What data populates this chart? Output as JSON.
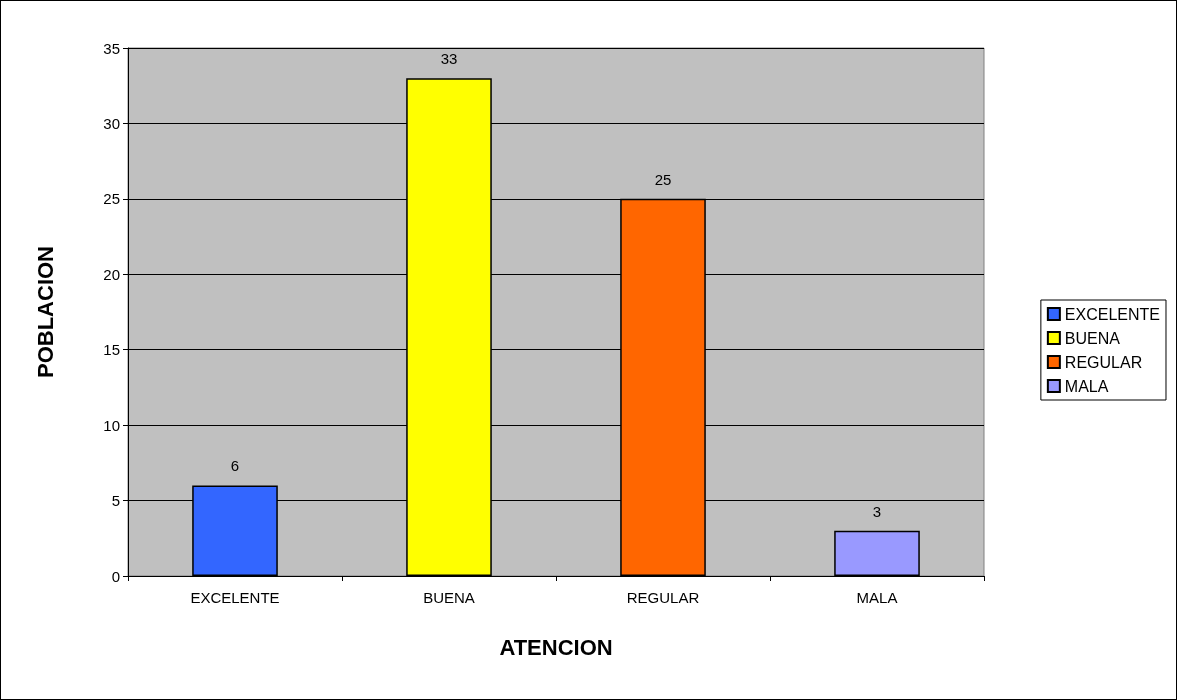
{
  "chart_data": {
    "type": "bar",
    "xlabel": "ATENCION",
    "ylabel": "POBLACION",
    "categories": [
      "EXCELENTE",
      "BUENA",
      "REGULAR",
      "MALA"
    ],
    "series": [
      {
        "name": "EXCELENTE",
        "color": "#3366ff",
        "values": [
          6,
          null,
          null,
          null
        ]
      },
      {
        "name": "BUENA",
        "color": "#ffff00",
        "values": [
          null,
          33,
          null,
          null
        ]
      },
      {
        "name": "REGULAR",
        "color": "#ff6600",
        "values": [
          null,
          null,
          25,
          null
        ]
      },
      {
        "name": "MALA",
        "color": "#9999ff",
        "values": [
          null,
          null,
          null,
          3
        ]
      }
    ],
    "ylim": [
      0,
      35
    ],
    "yticks": [
      0,
      5,
      10,
      15,
      20,
      25,
      30,
      35
    ],
    "grid": "y",
    "legend": "right",
    "data_labels": true
  }
}
